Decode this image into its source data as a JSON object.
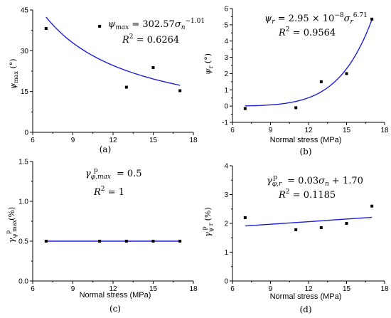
{
  "chart_data": [
    {
      "id": "a",
      "type": "scatter",
      "panel_label": "(a)",
      "ylabel": "ψmax (°)",
      "xlabel": "",
      "xlim": [
        6,
        18
      ],
      "ylim": [
        0,
        45
      ],
      "xticks": [
        6,
        9,
        12,
        15,
        18
      ],
      "yticks": [
        0,
        15,
        30,
        45
      ],
      "points": [
        [
          7,
          38.2
        ],
        [
          11,
          39
        ],
        [
          13,
          16.6
        ],
        [
          15,
          23.8
        ],
        [
          17,
          15.3
        ]
      ],
      "fit": {
        "kind": "power",
        "a": 302.57,
        "b": -1.01,
        "xrange": [
          7,
          17
        ]
      },
      "equation": "ψmax = 302.57σn^−1.01",
      "r2": "R² = 0.6264",
      "axis_bottom_zero": "0"
    },
    {
      "id": "b",
      "type": "scatter",
      "panel_label": "(b)",
      "ylabel": "ψr (°)",
      "xlabel": "Normal stress (MPa)",
      "xlim": [
        6,
        18
      ],
      "ylim": [
        -1,
        6
      ],
      "xticks": [
        6,
        9,
        12,
        15,
        18
      ],
      "yticks": [
        -1,
        0,
        1,
        2,
        3,
        4,
        5,
        6
      ],
      "points": [
        [
          7,
          -0.15
        ],
        [
          11,
          -0.1
        ],
        [
          13,
          1.5
        ],
        [
          15,
          2.0
        ],
        [
          17,
          5.35
        ]
      ],
      "fit": {
        "kind": "power",
        "a": 2.95e-08,
        "b": 6.71,
        "xrange": [
          7,
          17
        ]
      },
      "equation": "ψr = 2.95 × 10^−8 σn^6.71",
      "r2": "R² = 0.9564"
    },
    {
      "id": "c",
      "type": "line",
      "panel_label": "(c)",
      "ylabel": "γψ max p (%)",
      "xlabel": "Normal stress (MPa)",
      "xlim": [
        6,
        18
      ],
      "ylim": [
        0,
        1.5
      ],
      "xticks": [
        6,
        9,
        12,
        15,
        18
      ],
      "yticks": [
        0.0,
        0.5,
        1.0,
        1.5
      ],
      "points": [
        [
          7,
          0.5
        ],
        [
          11,
          0.5
        ],
        [
          13,
          0.5
        ],
        [
          15,
          0.5
        ],
        [
          17,
          0.5
        ]
      ],
      "fit": {
        "kind": "linear",
        "m": 0,
        "c": 0.5,
        "xrange": [
          7,
          17
        ]
      },
      "equation": "γφ,max p = 0.5",
      "r2": "R² = 1"
    },
    {
      "id": "d",
      "type": "scatter",
      "panel_label": "(d)",
      "ylabel": "γψ r p (%)",
      "xlabel": "Normal stress (MPa)",
      "xlim": [
        6,
        18
      ],
      "ylim": [
        0,
        4
      ],
      "xticks": [
        6,
        9,
        12,
        15,
        18
      ],
      "yticks": [
        0,
        1,
        2,
        3,
        4
      ],
      "points": [
        [
          7,
          2.2
        ],
        [
          11,
          1.78
        ],
        [
          13,
          1.85
        ],
        [
          15,
          2.0
        ],
        [
          17,
          2.6
        ]
      ],
      "fit": {
        "kind": "linear",
        "m": 0.03,
        "c": 1.7,
        "xrange": [
          7,
          17
        ]
      },
      "equation": "γφ,r p = 0.03σn + 1.70",
      "r2": "R² = 0.1185"
    }
  ],
  "colors": {
    "fit": "#1f1fd6",
    "marker": "#000000",
    "axis": "#000000"
  }
}
